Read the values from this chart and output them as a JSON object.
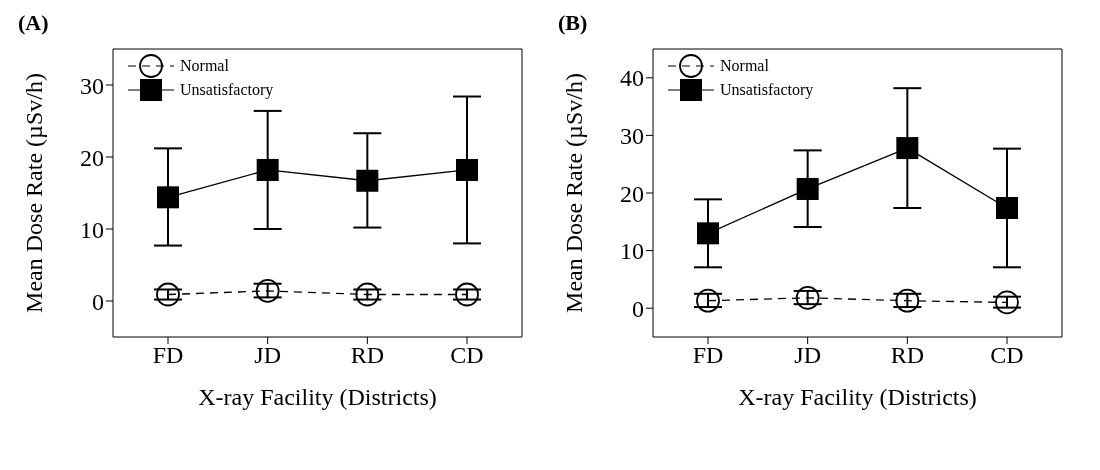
{
  "chart_data": [
    {
      "type": "line",
      "title": "(A)",
      "xlabel": "X-ray Facility (Districts)",
      "ylabel": "Mean Dose Rate (µSv/h)",
      "categories": [
        "FD",
        "JD",
        "RD",
        "CD"
      ],
      "ylim": [
        -5,
        35
      ],
      "yticks": [
        0,
        10,
        20,
        30
      ],
      "legend": "top left",
      "grid": false,
      "series": [
        {
          "name": "Normal",
          "color": "#000000",
          "marker": "circle",
          "line_style": "dashed",
          "values": [
            0.9,
            1.4,
            0.9,
            0.9
          ],
          "errors": [
            [
              0.2,
              1.6
            ],
            [
              0.5,
              2.4
            ],
            [
              0.2,
              1.6
            ],
            [
              0.2,
              1.6
            ]
          ]
        },
        {
          "name": "Unsatisfactory",
          "color": "#000000",
          "marker": "square",
          "line_style": "solid",
          "values": [
            14.4,
            18.2,
            16.7,
            18.2
          ],
          "errors": [
            [
              7.7,
              21.2
            ],
            [
              10.0,
              26.4
            ],
            [
              10.2,
              23.3
            ],
            [
              8.0,
              28.4
            ]
          ]
        }
      ]
    },
    {
      "type": "line",
      "title": "(B)",
      "xlabel": "X-ray Facility (Districts)",
      "ylabel": "Mean Dose Rate (µSv/h)",
      "categories": [
        "FD",
        "JD",
        "RD",
        "CD"
      ],
      "ylim": [
        -5,
        45
      ],
      "yticks": [
        0,
        10,
        20,
        30,
        40
      ],
      "legend": "top left",
      "grid": false,
      "series": [
        {
          "name": "Normal",
          "color": "#000000",
          "marker": "circle",
          "line_style": "dashed",
          "values": [
            1.3,
            1.8,
            1.3,
            1.0
          ],
          "errors": [
            [
              0.2,
              2.5
            ],
            [
              0.7,
              3.0
            ],
            [
              0.2,
              2.5
            ],
            [
              0.1,
              2.0
            ]
          ]
        },
        {
          "name": "Unsatisfactory",
          "color": "#000000",
          "marker": "square",
          "line_style": "solid",
          "values": [
            13.0,
            20.7,
            27.8,
            17.4
          ],
          "errors": [
            [
              7.1,
              18.9
            ],
            [
              14.1,
              27.4
            ],
            [
              17.4,
              38.2
            ],
            [
              7.1,
              27.7
            ]
          ]
        }
      ]
    }
  ]
}
